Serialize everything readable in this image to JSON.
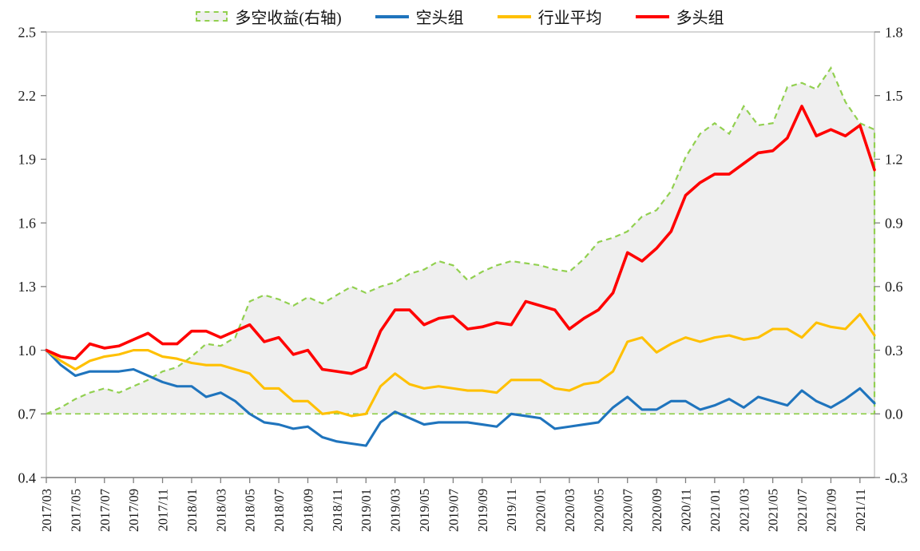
{
  "legend": {
    "items": [
      {
        "label": "多空收益(右轴)",
        "marker": "dashed-area",
        "color": "#92D050",
        "fill": "#EFEFEF"
      },
      {
        "label": "空头组",
        "marker": "line",
        "color": "#1F74BD"
      },
      {
        "label": "行业平均",
        "marker": "line",
        "color": "#FFC000"
      },
      {
        "label": "多头组",
        "marker": "line",
        "color": "#FF0000"
      }
    ]
  },
  "chart_data": {
    "type": "line",
    "title": "",
    "x": [
      "2017/03",
      "2017/04",
      "2017/05",
      "2017/06",
      "2017/07",
      "2017/08",
      "2017/09",
      "2017/10",
      "2017/11",
      "2017/12",
      "2018/01",
      "2018/02",
      "2018/03",
      "2018/04",
      "2018/05",
      "2018/06",
      "2018/07",
      "2018/08",
      "2018/09",
      "2018/10",
      "2018/11",
      "2018/12",
      "2019/01",
      "2019/02",
      "2019/03",
      "2019/04",
      "2019/05",
      "2019/06",
      "2019/07",
      "2019/08",
      "2019/09",
      "2019/10",
      "2019/11",
      "2019/12",
      "2020/01",
      "2020/02",
      "2020/03",
      "2020/04",
      "2020/05",
      "2020/06",
      "2020/07",
      "2020/08",
      "2020/09",
      "2020/10",
      "2020/11",
      "2020/12",
      "2021/01",
      "2021/02",
      "2021/03",
      "2021/04",
      "2021/05",
      "2021/06",
      "2021/07",
      "2021/08",
      "2021/09",
      "2021/10",
      "2021/11",
      "2021/12"
    ],
    "x_tick_labels": [
      "2017/03",
      "2017/05",
      "2017/07",
      "2017/09",
      "2017/11",
      "2018/01",
      "2018/03",
      "2018/05",
      "2018/07",
      "2018/09",
      "2018/11",
      "2019/01",
      "2019/03",
      "2019/05",
      "2019/07",
      "2019/09",
      "2019/11",
      "2020/01",
      "2020/03",
      "2020/05",
      "2020/07",
      "2020/09",
      "2020/11",
      "2021/01",
      "2021/03",
      "2021/05",
      "2021/07",
      "2021/09",
      "2021/11"
    ],
    "series": [
      {
        "name": "多空收益(右轴)",
        "axis": "right",
        "style": "dashed-area",
        "color": "#92D050",
        "fill": "#EFEFEF",
        "values": [
          0.0,
          0.03,
          0.07,
          0.1,
          0.12,
          0.1,
          0.13,
          0.16,
          0.2,
          0.22,
          0.27,
          0.33,
          0.32,
          0.36,
          0.53,
          0.56,
          0.54,
          0.51,
          0.55,
          0.52,
          0.56,
          0.6,
          0.57,
          0.6,
          0.62,
          0.66,
          0.68,
          0.72,
          0.7,
          0.63,
          0.67,
          0.7,
          0.72,
          0.71,
          0.7,
          0.68,
          0.67,
          0.73,
          0.81,
          0.83,
          0.86,
          0.93,
          0.96,
          1.05,
          1.21,
          1.32,
          1.37,
          1.32,
          1.45,
          1.36,
          1.37,
          1.54,
          1.56,
          1.53,
          1.63,
          1.47,
          1.37,
          1.34
        ]
      },
      {
        "name": "空头组",
        "axis": "left",
        "style": "solid",
        "color": "#1F74BD",
        "values": [
          1.0,
          0.93,
          0.88,
          0.9,
          0.9,
          0.9,
          0.91,
          0.88,
          0.85,
          0.83,
          0.83,
          0.78,
          0.8,
          0.76,
          0.7,
          0.66,
          0.65,
          0.63,
          0.64,
          0.59,
          0.57,
          0.56,
          0.55,
          0.66,
          0.71,
          0.68,
          0.65,
          0.66,
          0.66,
          0.66,
          0.65,
          0.64,
          0.7,
          0.69,
          0.68,
          0.63,
          0.64,
          0.65,
          0.66,
          0.73,
          0.78,
          0.72,
          0.72,
          0.76,
          0.76,
          0.72,
          0.74,
          0.77,
          0.73,
          0.78,
          0.76,
          0.74,
          0.81,
          0.76,
          0.73,
          0.77,
          0.82,
          0.75
        ]
      },
      {
        "name": "行业平均",
        "axis": "left",
        "style": "solid",
        "color": "#FFC000",
        "values": [
          1.0,
          0.95,
          0.91,
          0.95,
          0.97,
          0.98,
          1.0,
          1.0,
          0.97,
          0.96,
          0.94,
          0.93,
          0.93,
          0.91,
          0.89,
          0.82,
          0.82,
          0.76,
          0.76,
          0.7,
          0.71,
          0.69,
          0.7,
          0.83,
          0.89,
          0.84,
          0.82,
          0.83,
          0.82,
          0.81,
          0.81,
          0.8,
          0.86,
          0.86,
          0.86,
          0.82,
          0.81,
          0.84,
          0.85,
          0.9,
          1.04,
          1.06,
          0.99,
          1.03,
          1.06,
          1.04,
          1.06,
          1.07,
          1.05,
          1.06,
          1.1,
          1.1,
          1.06,
          1.13,
          1.11,
          1.1,
          1.17,
          1.07
        ]
      },
      {
        "name": "多头组",
        "axis": "left",
        "style": "solid",
        "color": "#FF0000",
        "values": [
          1.0,
          0.97,
          0.96,
          1.03,
          1.01,
          1.02,
          1.05,
          1.08,
          1.03,
          1.03,
          1.09,
          1.09,
          1.06,
          1.09,
          1.12,
          1.04,
          1.06,
          0.98,
          1.0,
          0.91,
          0.9,
          0.89,
          0.92,
          1.09,
          1.19,
          1.19,
          1.12,
          1.15,
          1.16,
          1.1,
          1.11,
          1.13,
          1.12,
          1.23,
          1.21,
          1.19,
          1.1,
          1.15,
          1.19,
          1.27,
          1.46,
          1.42,
          1.48,
          1.56,
          1.73,
          1.79,
          1.83,
          1.83,
          1.88,
          1.93,
          1.94,
          2.0,
          2.15,
          2.01,
          2.04,
          2.01,
          2.06,
          1.85
        ]
      }
    ],
    "left_axis": {
      "min": 0.4,
      "max": 2.5,
      "tick_labels": [
        "0.4",
        "0.7",
        "1.0",
        "1.3",
        "1.6",
        "1.9",
        "2.2",
        "2.5"
      ]
    },
    "right_axis": {
      "min": -0.3,
      "max": 1.8,
      "tick_labels": [
        "-0.3",
        "0.0",
        "0.3",
        "0.6",
        "0.9",
        "1.2",
        "1.5",
        "1.8"
      ]
    },
    "baseline": {
      "axis": "right",
      "value": 0.0,
      "style": "dashed",
      "color": "#92D050"
    },
    "grid": "off",
    "legend_position": "top"
  }
}
